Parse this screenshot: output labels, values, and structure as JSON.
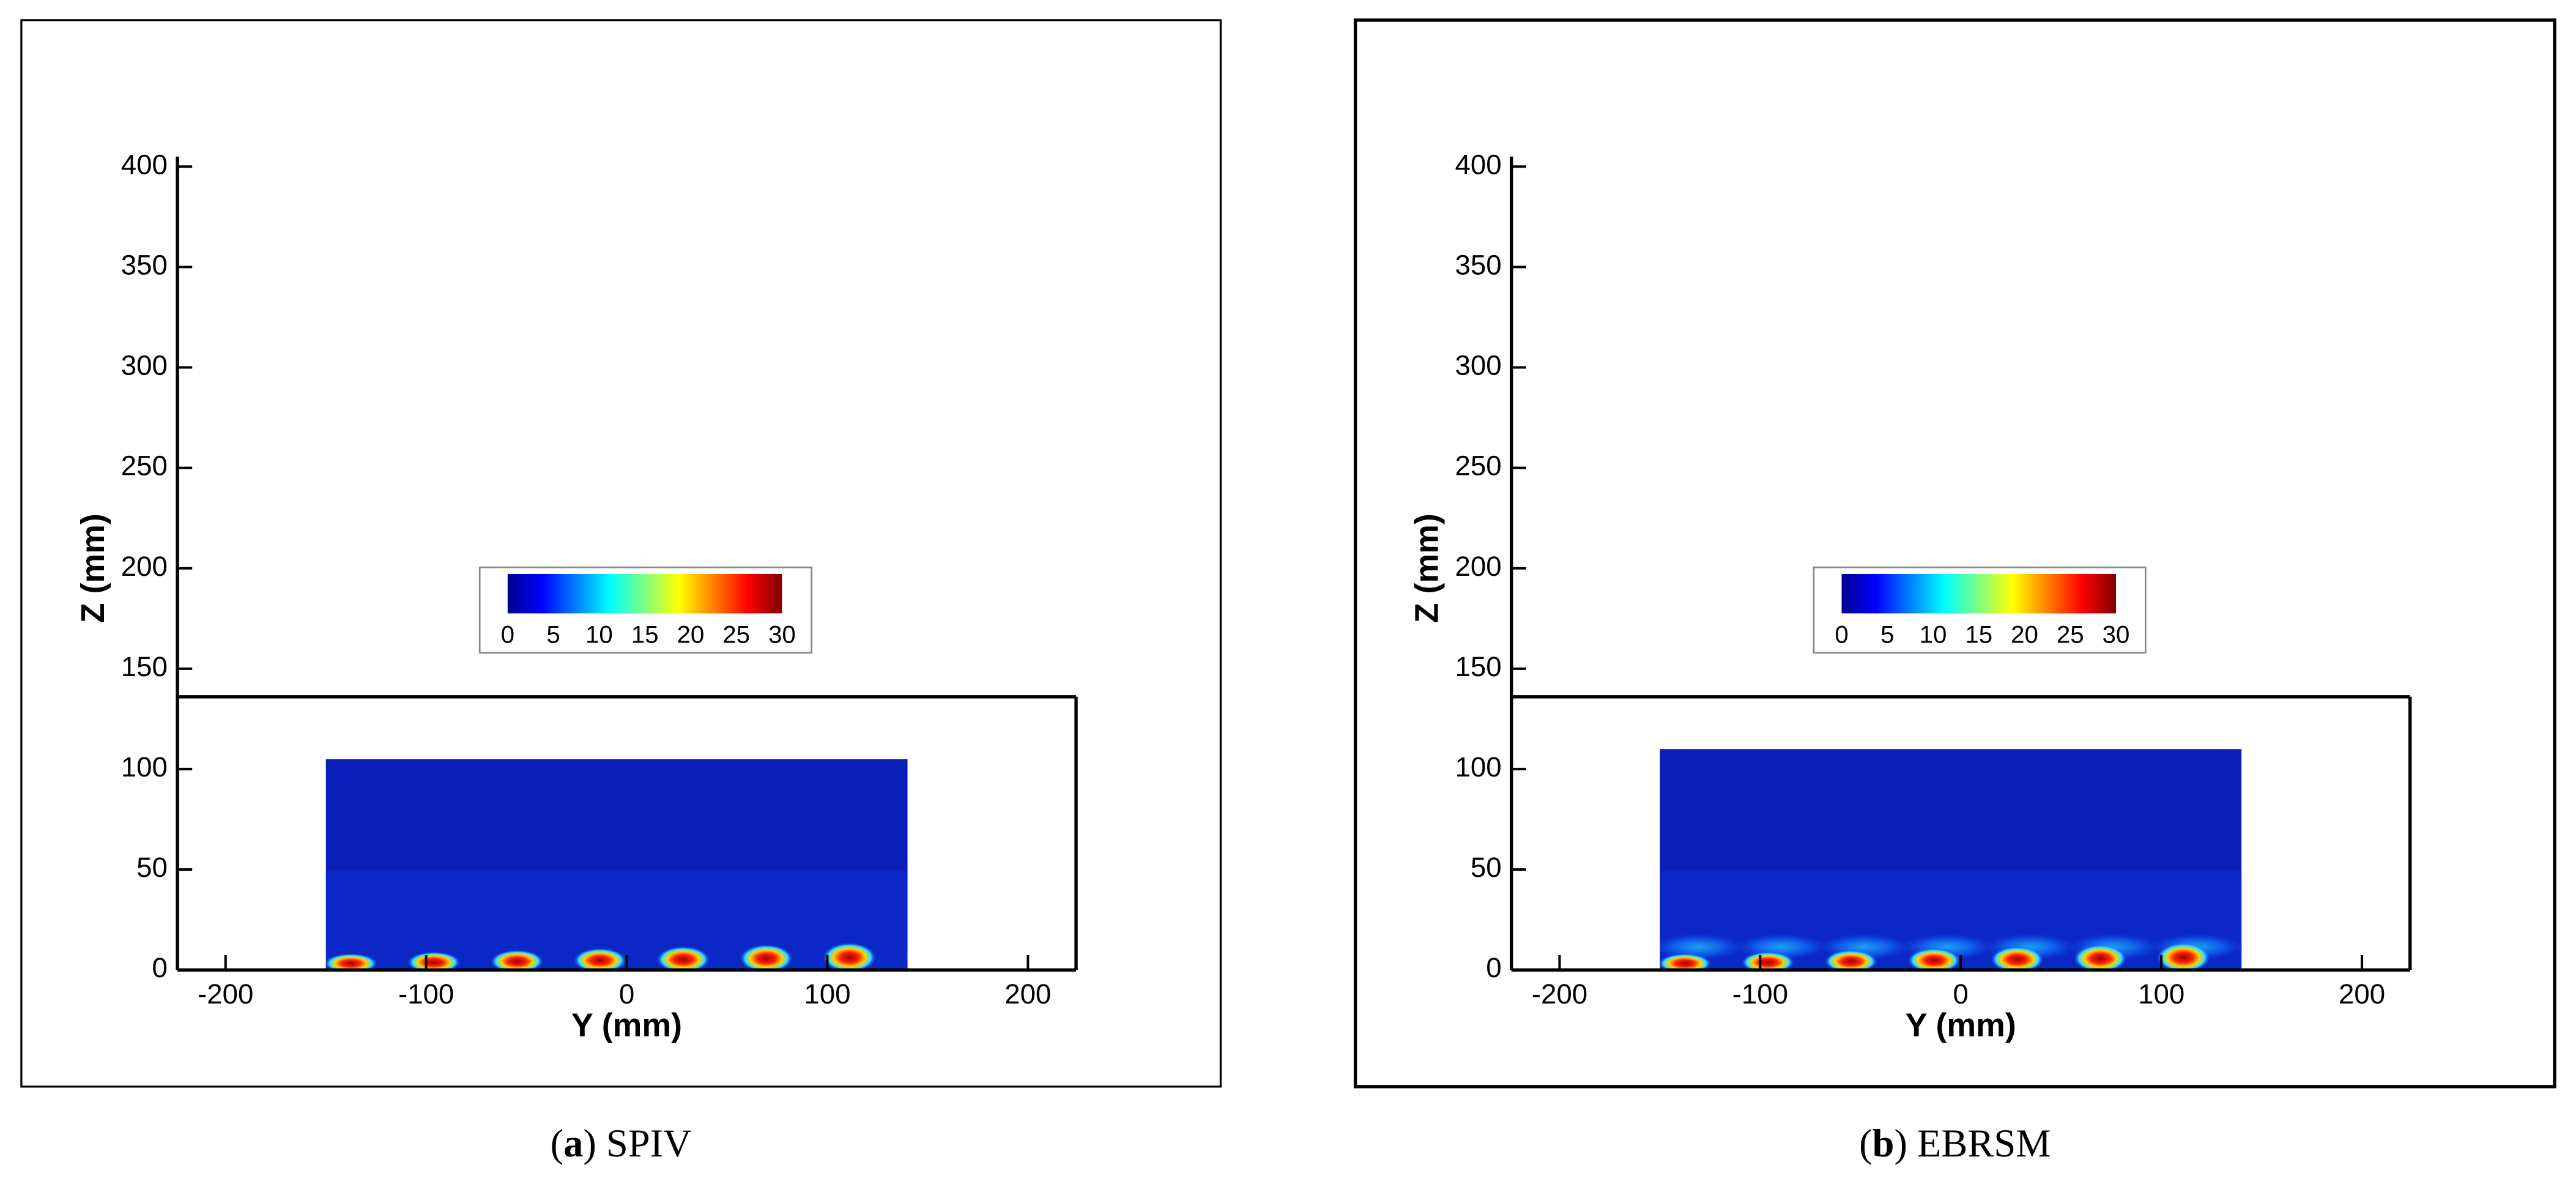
{
  "chart_data": [
    {
      "type": "contour",
      "xlabel": "Y (mm)",
      "ylabel": "Z (mm)",
      "xlim": [
        -224,
        224
      ],
      "ylim": [
        0,
        405
      ],
      "xticks": [
        -200,
        -100,
        0,
        100,
        200
      ],
      "yticks": [
        0,
        50,
        100,
        150,
        200,
        250,
        300,
        350,
        400
      ],
      "box_top": 136,
      "field": {
        "xlim": [
          -150,
          140
        ],
        "ylim": [
          0,
          105
        ]
      },
      "colorbar": {
        "lim": [
          0,
          30
        ],
        "ticks": [
          0,
          5,
          10,
          15,
          20,
          25,
          30
        ],
        "colors": [
          "#00008f",
          "#0000ff",
          "#0080ff",
          "#00ffff",
          "#80ff80",
          "#ffff00",
          "#ff8000",
          "#ff0000",
          "#800000"
        ]
      },
      "caption": [
        "(",
        "a",
        ") SPIV"
      ]
    },
    {
      "type": "contour",
      "xlabel": "Y (mm)",
      "ylabel": "Z (mm)",
      "xlim": [
        -224,
        224
      ],
      "ylim": [
        0,
        405
      ],
      "xticks": [
        -200,
        -100,
        0,
        100,
        200
      ],
      "yticks": [
        0,
        50,
        100,
        150,
        200,
        250,
        300,
        350,
        400
      ],
      "box_top": 136,
      "field": {
        "xlim": [
          -150,
          140
        ],
        "ylim": [
          0,
          110
        ]
      },
      "colorbar": {
        "lim": [
          0,
          30
        ],
        "ticks": [
          0,
          5,
          10,
          15,
          20,
          25,
          30
        ],
        "colors": [
          "#00008f",
          "#0000ff",
          "#0080ff",
          "#00ffff",
          "#80ff80",
          "#ffff00",
          "#ff8000",
          "#ff0000",
          "#800000"
        ]
      },
      "caption": [
        "(",
        "b",
        ") EBRSM"
      ]
    }
  ]
}
